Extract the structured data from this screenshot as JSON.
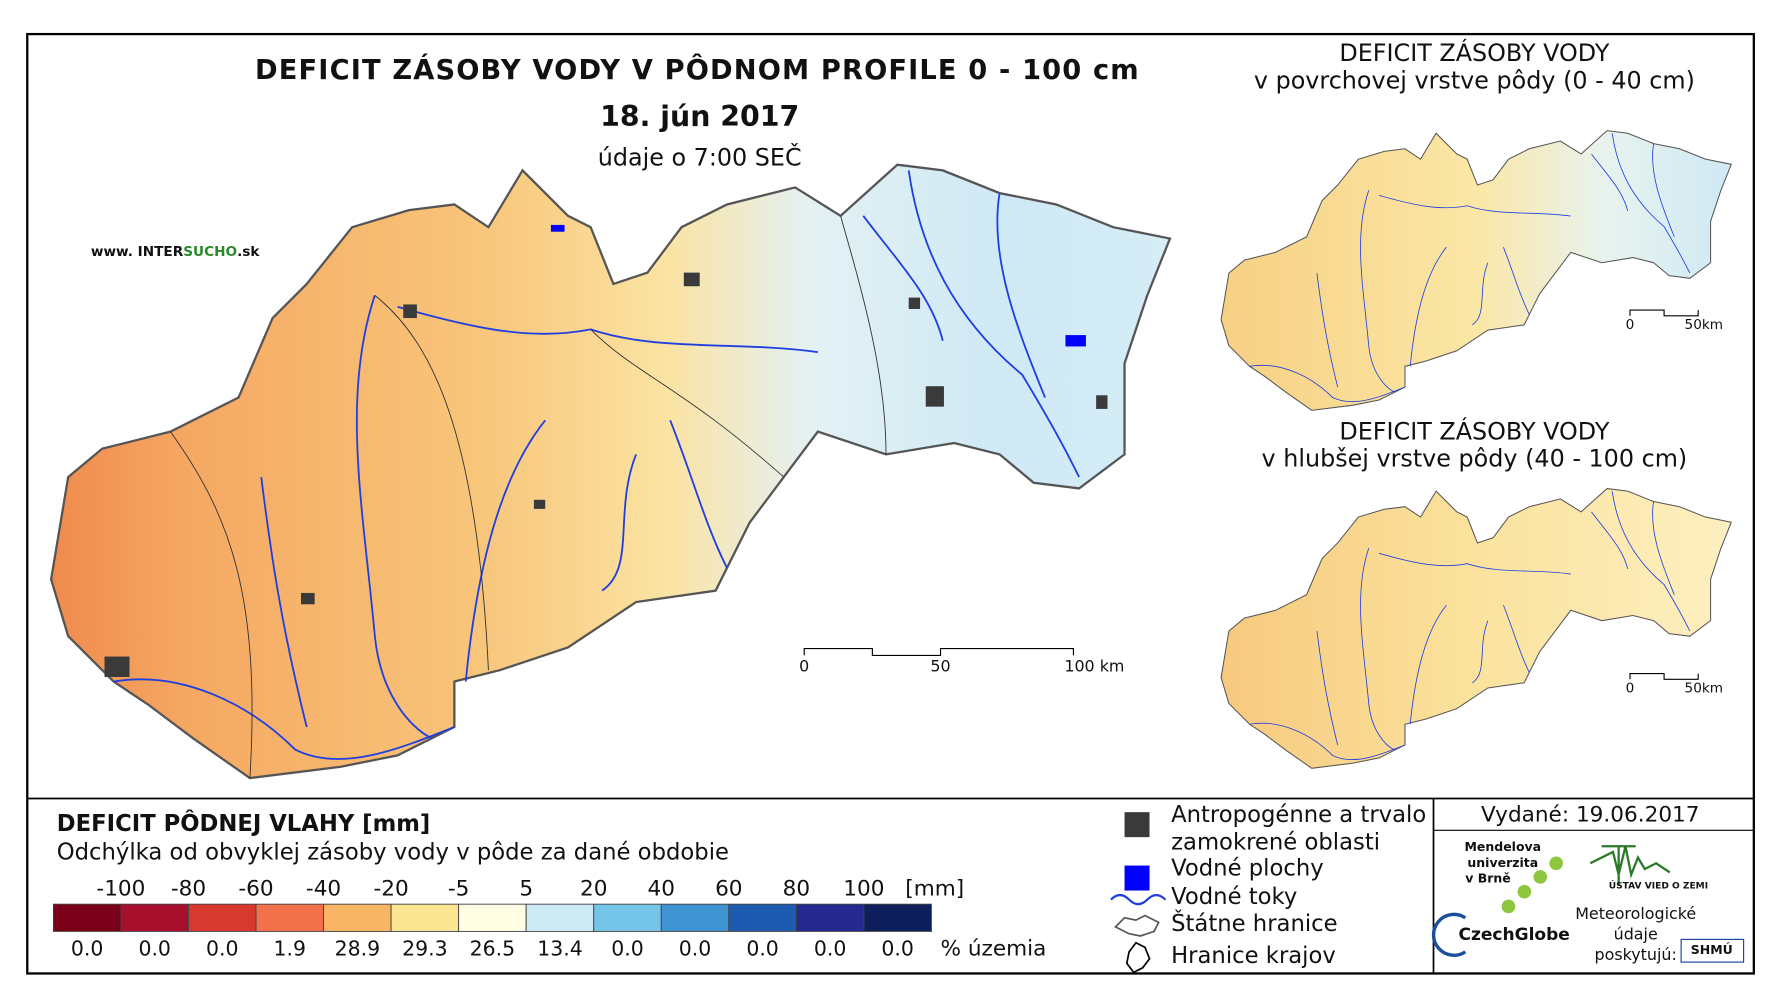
{
  "main_map": {
    "title": "DEFICIT ZÁSOBY VODY V PÔDNOM PROFILE 0 - 100 cm",
    "date": "18. jún 2017",
    "time": "údaje o 7:00 SEČ",
    "website": [
      "www. INTER",
      "SUCHO",
      ".sk"
    ],
    "scale_labels": [
      "0",
      "50",
      "100 km"
    ]
  },
  "inset_top": {
    "title": "DEFICIT ZÁSOBY VODY",
    "subtitle": "v povrchovej vrstve pôdy (0 - 40 cm)",
    "scale_labels": [
      "0",
      "50km"
    ]
  },
  "inset_bottom": {
    "title": "DEFICIT ZÁSOBY VODY",
    "subtitle": "v hlubšej vrstve pôdy (40 - 100 cm)",
    "scale_labels": [
      "0",
      "50km"
    ]
  },
  "legend": {
    "title": "DEFICIT PÔDNEJ VLAHY [mm]",
    "subtitle": "Odchýlka od obvyklej zásoby vody v pôde za dané obdobie",
    "breaks": [
      "-100",
      "-80",
      "-60",
      "-40",
      "-20",
      "-5",
      "5",
      "20",
      "40",
      "60",
      "80",
      "100"
    ],
    "unit": "[mm]",
    "colors": [
      "#7a0019",
      "#a80f2d",
      "#d7392e",
      "#f2714a",
      "#f9b566",
      "#fbe593",
      "#fffde2",
      "#cdeaf5",
      "#74c5e7",
      "#3f94d3",
      "#1d5bb0",
      "#25298f",
      "#0e1f5c"
    ],
    "shares": [
      "0.0",
      "0.0",
      "0.0",
      "1.9",
      "28.9",
      "29.3",
      "26.5",
      "13.4",
      "0.0",
      "0.0",
      "0.0",
      "0.0",
      "0.0"
    ],
    "shares_label": "% územia"
  },
  "symbols": [
    {
      "label": [
        "Antropogénne a trvalo",
        "zamokrené oblasti"
      ],
      "color": "#3a3a3a"
    },
    {
      "label": [
        "Vodné plochy"
      ],
      "color": "#0000ff"
    },
    {
      "label": [
        "Vodné toky"
      ],
      "color": "#1f3fe0"
    },
    {
      "label": [
        "Štátne hranice"
      ],
      "color": "#555555"
    },
    {
      "label": [
        "Hranice krajov"
      ],
      "color": "#000000"
    }
  ],
  "footer": {
    "issued": "Vydané: 19.06.2017",
    "mendel": [
      "Mendelova",
      "univerzita",
      "v Brně"
    ],
    "czechglobe": "CzechGlobe",
    "ustav": "ÚSTAV VIED O ZEMI",
    "meteo": [
      "Meteorologické",
      "údaje",
      "poskytujú:"
    ],
    "shmu": "SHMÚ"
  }
}
